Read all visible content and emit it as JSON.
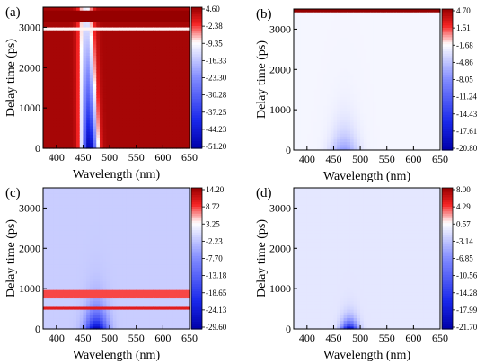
{
  "chart_data": [
    {
      "type": "heatmap",
      "panel_label": "(a)",
      "xlabel": "Wavelength (nm)",
      "ylabel": "Delay time (ps)",
      "xlim": [
        375,
        650
      ],
      "ylim": [
        0,
        3500
      ],
      "x_ticks": [
        "400",
        "450",
        "500",
        "550",
        "600",
        "650"
      ],
      "y_ticks": [
        "0",
        "1000",
        "2000",
        "3000"
      ],
      "colorbar_ticks": [
        "4.60",
        "-2.38",
        "-9.35",
        "-16.33",
        "-23.30",
        "-30.28",
        "-37.25",
        "-44.23",
        "-51.20"
      ],
      "zlim": [
        -51.2,
        4.6
      ],
      "background_value": 3.5,
      "features": [
        {
          "kind": "bleach",
          "center_nm": 462,
          "width_nm": 14,
          "min_value": -51.2,
          "extent_ps": 2700,
          "tilt_nm_per_ps": -0.002
        },
        {
          "kind": "band",
          "from_ps": 3120,
          "to_ps": 3460,
          "value": 4.6
        },
        {
          "kind": "band",
          "from_ps": 2940,
          "to_ps": 3010,
          "value": -9.0
        }
      ]
    },
    {
      "type": "heatmap",
      "panel_label": "(b)",
      "xlabel": "Wavelength (nm)",
      "ylabel": "Delay time (ps)",
      "xlim": [
        375,
        650
      ],
      "ylim": [
        0,
        3500
      ],
      "x_ticks": [
        "400",
        "450",
        "500",
        "550",
        "600",
        "650"
      ],
      "y_ticks": [
        "0",
        "1000",
        "2000",
        "3000"
      ],
      "colorbar_ticks": [
        "4.70",
        "1.51",
        "-1.68",
        "-4.86",
        "-8.05",
        "-11.24",
        "-14.43",
        "-17.61",
        "-20.80"
      ],
      "zlim": [
        -20.8,
        4.7
      ],
      "background_value": -2.2,
      "features": [
        {
          "kind": "bleach",
          "center_nm": 470,
          "width_nm": 25,
          "min_value": -7.5,
          "extent_ps": 450,
          "tilt_nm_per_ps": 0
        },
        {
          "kind": "band",
          "from_ps": 3400,
          "to_ps": 3500,
          "value": 4.7
        }
      ]
    },
    {
      "type": "heatmap",
      "panel_label": "(c)",
      "xlabel": "Wavelength (nm)",
      "ylabel": "Delay time (ps)",
      "xlim": [
        375,
        650
      ],
      "ylim": [
        0,
        3500
      ],
      "x_ticks": [
        "400",
        "450",
        "500",
        "550",
        "600",
        "650"
      ],
      "y_ticks": [
        "0",
        "1000",
        "2000",
        "3000"
      ],
      "colorbar_ticks": [
        "14.20",
        "8.72",
        "3.25",
        "-2.23",
        "-7.70",
        "-13.18",
        "-18.65",
        "-24.13",
        "-29.60"
      ],
      "zlim": [
        -29.6,
        14.2
      ],
      "background_value": -1.5,
      "features": [
        {
          "kind": "bleach",
          "center_nm": 475,
          "width_nm": 20,
          "min_value": -29.6,
          "extent_ps": 380,
          "tilt_nm_per_ps": 0
        },
        {
          "kind": "band",
          "from_ps": 780,
          "to_ps": 950,
          "value": 8.0
        },
        {
          "kind": "band",
          "from_ps": 470,
          "to_ps": 560,
          "value": 10.0
        }
      ]
    },
    {
      "type": "heatmap",
      "panel_label": "(d)",
      "xlabel": "Wavelength (nm)",
      "ylabel": "Delay time (ps)",
      "xlim": [
        375,
        650
      ],
      "ylim": [
        0,
        3500
      ],
      "x_ticks": [
        "400",
        "450",
        "500",
        "550",
        "600",
        "650"
      ],
      "y_ticks": [
        "0",
        "1000",
        "2000",
        "3000"
      ],
      "colorbar_ticks": [
        "8.00",
        "4.29",
        "0.57",
        "-3.14",
        "-6.85",
        "-10.56",
        "-14.28",
        "-17.99",
        "-21.70"
      ],
      "zlim": [
        -21.7,
        8.0
      ],
      "background_value": -1.0,
      "features": [
        {
          "kind": "bleach",
          "center_nm": 480,
          "width_nm": 15,
          "min_value": -21.7,
          "extent_ps": 180,
          "tilt_nm_per_ps": 0
        }
      ]
    }
  ]
}
